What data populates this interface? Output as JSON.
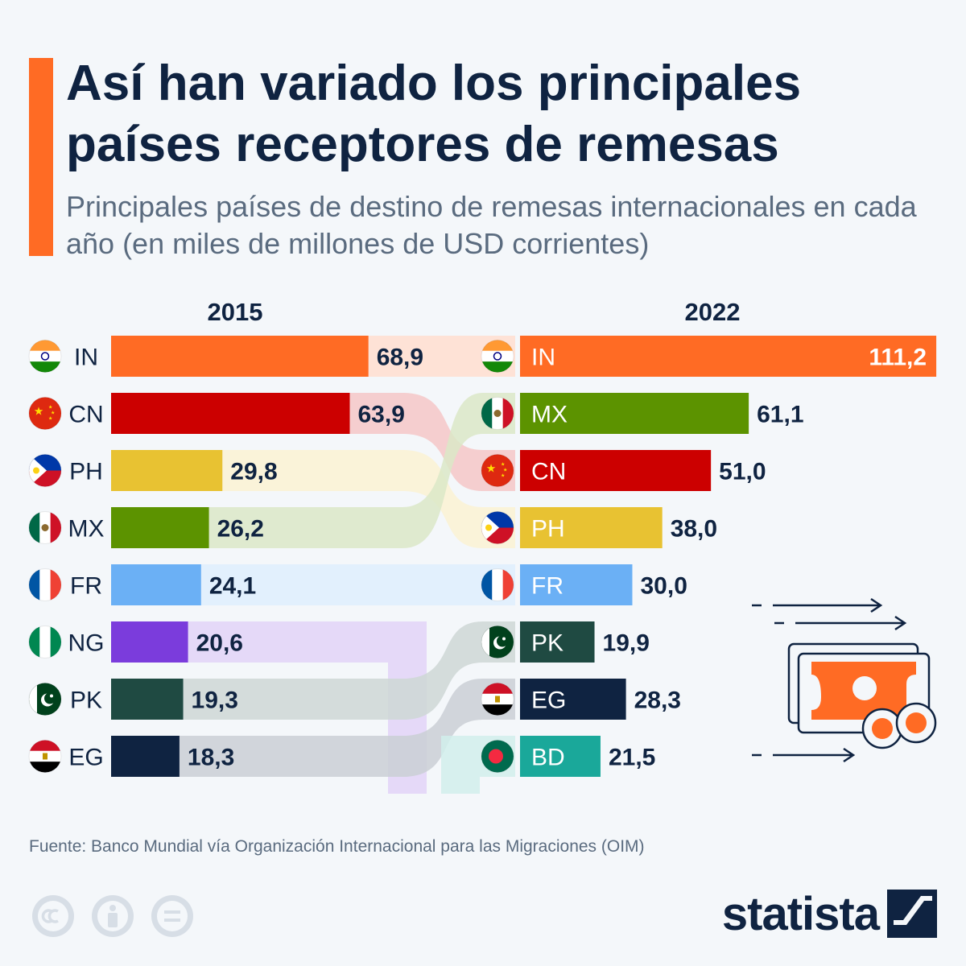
{
  "title": "Así han variado los principales países receptores de remesas",
  "subtitle": "Principales países de destino de remesas internacionales en cada año (en miles de millones de USD corrientes)",
  "source": "Fuente: Banco Mundial vía Organización Internacional para las Migraciones (OIM)",
  "brand": "statista",
  "colors": {
    "IN": "#ff6b24",
    "CN": "#cc0000",
    "PH": "#e8c232",
    "MX": "#5c9300",
    "FR": "#6bb0f5",
    "NG": "#7b3cdc",
    "PK": "#1f4a42",
    "EG": "#0f2341",
    "BD": "#1aa89a",
    "accent": "#ff6b24",
    "text": "#0f2341"
  },
  "chart_data": {
    "type": "bar",
    "title": "",
    "unit": "miles de millones de USD corrientes",
    "series": [
      {
        "name": "2015",
        "categories": [
          "IN",
          "CN",
          "PH",
          "MX",
          "FR",
          "NG",
          "PK",
          "EG"
        ],
        "values": [
          68.9,
          63.9,
          29.8,
          26.2,
          24.1,
          20.6,
          19.3,
          18.3
        ],
        "labels": [
          "68,9",
          "63,9",
          "29,8",
          "26,2",
          "24,1",
          "20,6",
          "19,3",
          "18,3"
        ]
      },
      {
        "name": "2022",
        "categories": [
          "IN",
          "MX",
          "CN",
          "PH",
          "FR",
          "PK",
          "EG",
          "BD"
        ],
        "values": [
          111.2,
          61.1,
          51.0,
          38.0,
          30.0,
          19.9,
          28.3,
          21.5
        ],
        "labels": [
          "111,2",
          "61,1",
          "51,0",
          "38,0",
          "30,0",
          "19,9",
          "28,3",
          "21,5"
        ]
      }
    ],
    "flags": [
      "India",
      "China",
      "Philippines",
      "Mexico",
      "France",
      "Nigeria",
      "Pakistan",
      "Egypt",
      "Bangladesh"
    ]
  },
  "cc_icons": [
    "cc-icon",
    "attribution-icon",
    "no-derivatives-icon"
  ],
  "illustration": "money-transfer-icon"
}
